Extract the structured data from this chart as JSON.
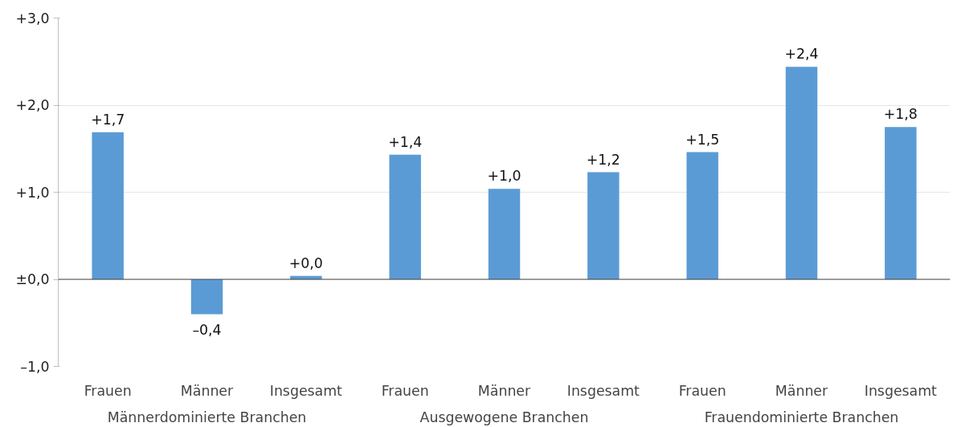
{
  "chart_data": {
    "type": "bar",
    "categories": [
      "Frauen",
      "Männer",
      "Insgesamt",
      "Frauen",
      "Männer",
      "Insgesamt",
      "Frauen",
      "Männer",
      "Insgesamt"
    ],
    "values": [
      1.69,
      -0.4,
      0.04,
      1.43,
      1.04,
      1.23,
      1.46,
      2.44,
      1.75
    ],
    "value_labels": [
      "+1,7",
      "–0,4",
      "+0,0",
      "+1,4",
      "+1,0",
      "+1,2",
      "+1,5",
      "+2,4",
      "+1,8"
    ],
    "color": "#5b9bd5",
    "ylim": [
      -1,
      3
    ],
    "yticks": [
      {
        "value": -1,
        "label": "–1,0"
      },
      {
        "value": 0,
        "label": "±0,0"
      },
      {
        "value": 1,
        "label": "+1,0"
      },
      {
        "value": 2,
        "label": "+2,0"
      },
      {
        "value": 3,
        "label": "+3,0"
      }
    ],
    "grid": "y",
    "annotations": [
      "Männerdominierte Branchen",
      "Ausgewogene Branchen",
      "Frauendominierte Branchen"
    ]
  }
}
